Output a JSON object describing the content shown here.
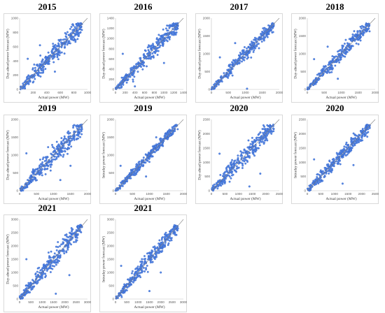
{
  "chart_data": [
    {
      "type": "scatter",
      "title": "2015",
      "xlabel": "Actual power (MW)",
      "ylabel": "Day-ahead power forecast (MW)",
      "xlim": [
        0,
        1000
      ],
      "ylim": [
        0,
        1000
      ],
      "xticks": [
        0,
        200,
        400,
        600,
        800,
        1000
      ],
      "yticks": [
        0,
        200,
        400,
        600,
        800,
        1000
      ],
      "diagonal": "y = x",
      "grid": false,
      "spread": 160,
      "outliers": [
        [
          120,
          430
        ],
        [
          300,
          620
        ],
        [
          520,
          250
        ]
      ]
    },
    {
      "type": "scatter",
      "title": "2016",
      "xlabel": "Actual power (MW)",
      "ylabel": "Day-ahead power forecast (MW)",
      "xlim": [
        0,
        1400
      ],
      "ylim": [
        0,
        1400
      ],
      "xticks": [
        0,
        200,
        400,
        600,
        800,
        1000,
        1200,
        1400
      ],
      "yticks": [
        0,
        200,
        400,
        600,
        800,
        1000,
        1200,
        1400
      ],
      "diagonal": "y = x",
      "grid": false,
      "spread": 200,
      "outliers": [
        [
          150,
          700
        ],
        [
          400,
          60
        ],
        [
          1000,
          520
        ]
      ]
    },
    {
      "type": "scatter",
      "title": "2017",
      "xlabel": "Actual power (MW)",
      "ylabel": "Day-ahead power forecast (MW)",
      "xlim": [
        0,
        2000
      ],
      "ylim": [
        0,
        2000
      ],
      "xticks": [
        0,
        500,
        1000,
        1500,
        2000
      ],
      "yticks": [
        0,
        500,
        1000,
        1500,
        2000
      ],
      "diagonal": "y = x",
      "grid": false,
      "spread": 230,
      "outliers": [
        [
          250,
          900
        ],
        [
          1050,
          20
        ],
        [
          700,
          1300
        ]
      ]
    },
    {
      "type": "scatter",
      "title": "2018",
      "xlabel": "Actual power (MW)",
      "ylabel": "Day-ahead power forecast (MW)",
      "xlim": [
        0,
        2000
      ],
      "ylim": [
        0,
        2000
      ],
      "xticks": [
        0,
        500,
        1000,
        1500,
        2000
      ],
      "yticks": [
        0,
        500,
        1000,
        1500,
        2000
      ],
      "diagonal": "y = x",
      "grid": false,
      "spread": 220,
      "outliers": [
        [
          200,
          850
        ],
        [
          900,
          300
        ],
        [
          600,
          1200
        ]
      ]
    },
    {
      "type": "scatter",
      "title": "2019",
      "xlabel": "Actual power (MW)",
      "ylabel": "Day-ahead power forecast (MW)",
      "xlim": [
        0,
        2000
      ],
      "ylim": [
        0,
        2000
      ],
      "xticks": [
        0,
        500,
        1000,
        1500,
        2000
      ],
      "yticks": [
        0,
        500,
        1000,
        1500,
        2000
      ],
      "diagonal": "y = x",
      "grid": false,
      "spread": 300,
      "outliers": [
        [
          200,
          1050
        ],
        [
          1200,
          300
        ],
        [
          1500,
          700
        ]
      ]
    },
    {
      "type": "scatter",
      "title": "2019",
      "xlabel": "Actual power (MW)",
      "ylabel": "Intraday power forecast (MW)",
      "xlim": [
        0,
        2000
      ],
      "ylim": [
        0,
        2000
      ],
      "xticks": [
        0,
        500,
        1000,
        1500,
        2000
      ],
      "yticks": [
        0,
        500,
        1000,
        1500,
        2000
      ],
      "diagonal": "y = x",
      "grid": false,
      "spread": 170,
      "outliers": [
        [
          150,
          700
        ],
        [
          900,
          400
        ],
        [
          1200,
          1500
        ]
      ]
    },
    {
      "type": "scatter",
      "title": "2020",
      "xlabel": "Actual power (MW)",
      "ylabel": "Day-ahead power forecast (MW)",
      "xlim": [
        0,
        2500
      ],
      "ylim": [
        0,
        2500
      ],
      "xticks": [
        0,
        500,
        1000,
        1500,
        2000,
        2500
      ],
      "yticks": [
        0,
        500,
        1000,
        1500,
        2000,
        2500
      ],
      "diagonal": "y = x",
      "grid": false,
      "spread": 380,
      "outliers": [
        [
          300,
          1300
        ],
        [
          1400,
          150
        ],
        [
          1800,
          600
        ]
      ]
    },
    {
      "type": "scatter",
      "title": "2020",
      "xlabel": "Actual power (MW)",
      "ylabel": "Intraday power forecast (MW)",
      "xlim": [
        0,
        2500
      ],
      "ylim": [
        0,
        2500
      ],
      "xticks": [
        0,
        500,
        1000,
        1500,
        2000,
        2500
      ],
      "yticks": [
        0,
        500,
        1000,
        1500,
        2000,
        2500
      ],
      "diagonal": "y = x",
      "grid": false,
      "spread": 300,
      "outliers": [
        [
          250,
          1100
        ],
        [
          1300,
          250
        ],
        [
          1700,
          900
        ]
      ]
    },
    {
      "type": "scatter",
      "title": "2021",
      "xlabel": "Actual power (MW)",
      "ylabel": "Day-ahead power forecast (MW)",
      "xlim": [
        0,
        3000
      ],
      "ylim": [
        0,
        3000
      ],
      "xticks": [
        0,
        500,
        1000,
        1500,
        2000,
        2500,
        3000
      ],
      "yticks": [
        0,
        500,
        1000,
        1500,
        2000,
        2500,
        3000
      ],
      "diagonal": "y = x",
      "grid": false,
      "spread": 420,
      "outliers": [
        [
          300,
          1500
        ],
        [
          1600,
          200
        ],
        [
          2200,
          900
        ]
      ]
    },
    {
      "type": "scatter",
      "title": "2021",
      "xlabel": "Actual power (MW)",
      "ylabel": "Intraday power forecast (MW)",
      "xlim": [
        0,
        3000
      ],
      "ylim": [
        0,
        3000
      ],
      "xticks": [
        0,
        500,
        1000,
        1500,
        2000,
        2500,
        3000
      ],
      "yticks": [
        0,
        500,
        1000,
        1500,
        2000,
        2500,
        3000
      ],
      "diagonal": "y = x",
      "grid": false,
      "spread": 330,
      "outliers": [
        [
          250,
          1250
        ],
        [
          1500,
          300
        ],
        [
          2000,
          1000
        ]
      ]
    }
  ],
  "colors": {
    "point_fill": "#5b8ee6",
    "point_stroke": "#1f4fc2",
    "diagonal": "#7f7f7f",
    "axis": "#bfbfbf"
  }
}
